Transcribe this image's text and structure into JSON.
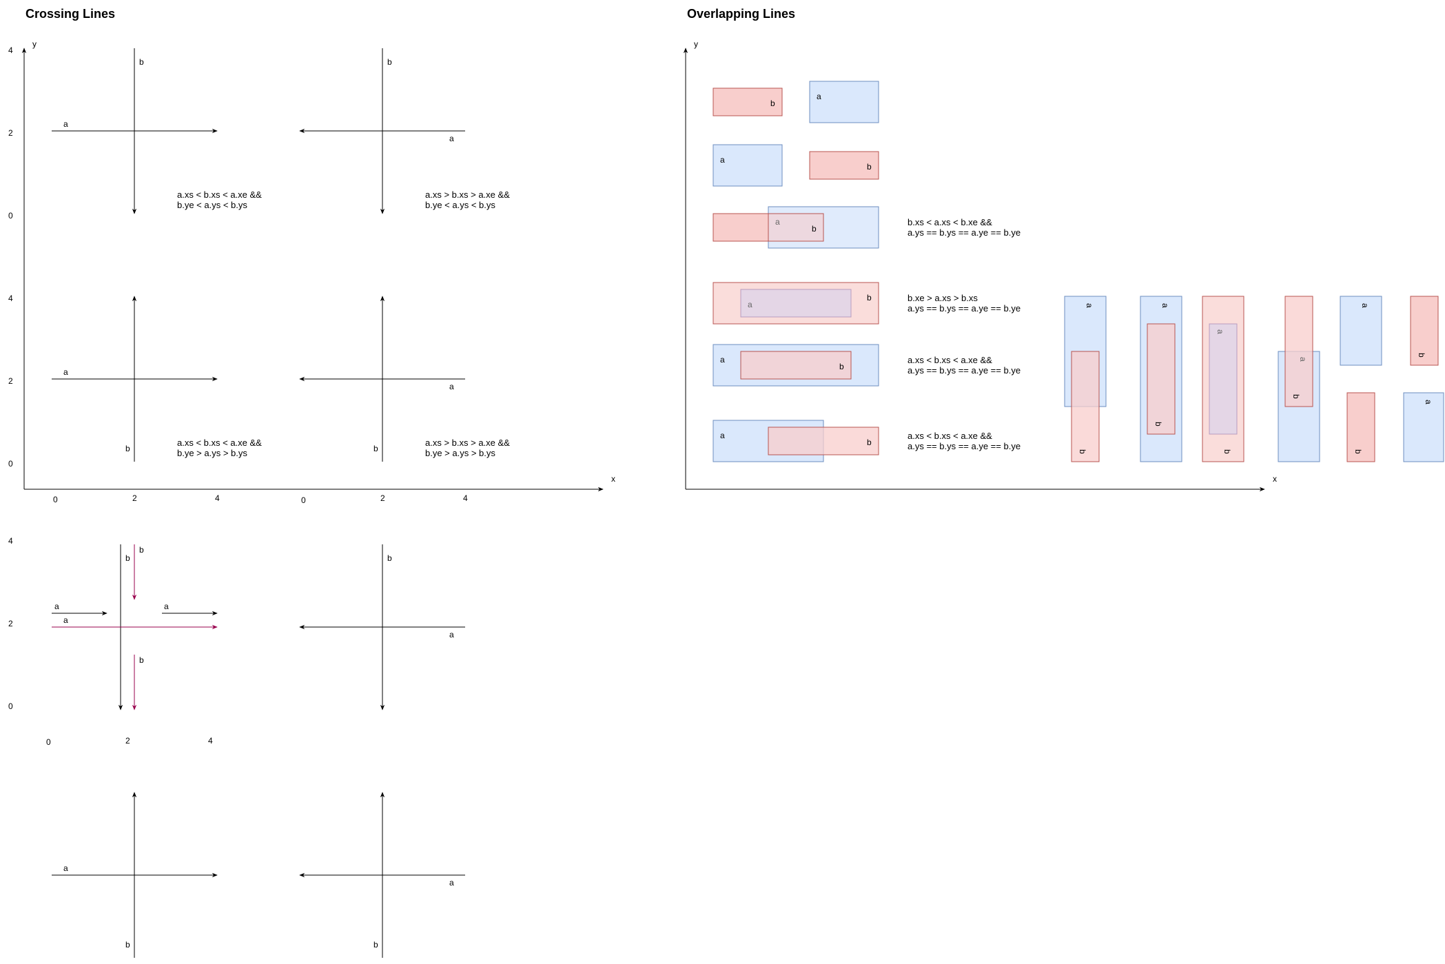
{
  "titles": {
    "crossing": "Crossing Lines",
    "overlapping": "Overlapping Lines"
  },
  "axes": {
    "x_label": "x",
    "y_label": "y"
  },
  "ticks": {
    "y": [
      "4",
      "2",
      "0"
    ],
    "x": [
      "0",
      "2",
      "4"
    ]
  },
  "point_labels": {
    "a": "a",
    "b": "b"
  },
  "conditions": {
    "c1": [
      "a.xs < b.xs < a.xe &&",
      "b.ye < a.ys < b.ys"
    ],
    "c2": [
      "a.xs > b.xs > a.xe &&",
      "b.ye < a.ys < b.ys"
    ],
    "c3": [
      "a.xs < b.xs < a.xe &&",
      "b.ye > a.ys > b.ys"
    ],
    "c4": [
      "a.xs > b.xs > a.xe &&",
      "b.ye > a.ys > b.ys"
    ],
    "o1": [
      "b.xs < a.xs < b.xe &&",
      "a.ys == b.ys == a.ye == b.ye"
    ],
    "o2": [
      "b.xe > a.xs > b.xs",
      "a.ys == b.ys == a.ye == b.ye"
    ],
    "o3": [
      "a.xs < b.xs < a.xe &&",
      "a.ys == b.ys == a.ye == b.ye"
    ],
    "o4": [
      "a.xs < b.xs < a.xe &&",
      "a.ys == b.ys == a.ye == b.ye"
    ]
  },
  "colors": {
    "line": "#000000",
    "highlight": "#99004d",
    "box_a_fill": "#dae8fc",
    "box_a_stroke": "#6c8ebf",
    "box_b_fill": "#f8cecc",
    "box_b_stroke": "#b85450",
    "ghost_text": "#666666"
  }
}
